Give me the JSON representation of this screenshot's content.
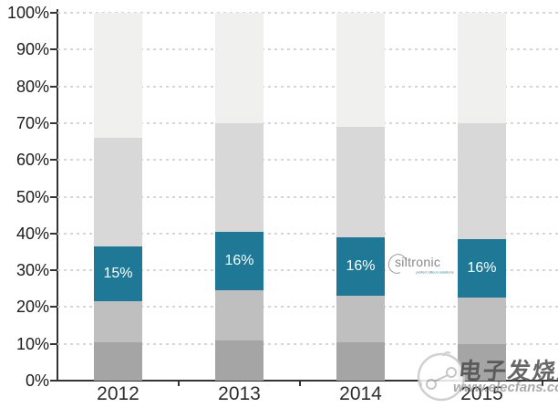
{
  "chart_data": {
    "type": "bar",
    "stacked": true,
    "title": "",
    "xlabel": "",
    "ylabel": "",
    "categories": [
      "2012",
      "2013",
      "2014",
      "2015"
    ],
    "series": [
      {
        "name": "bottom-dark-gray",
        "color": "#a5a5a5",
        "values": [
          10.5,
          11,
          10.5,
          10
        ]
      },
      {
        "name": "lower-mid-gray",
        "color": "#bfbfbf",
        "values": [
          11,
          13.5,
          12.5,
          12.5
        ]
      },
      {
        "name": "siltronic-share-teal",
        "color": "#1e7896",
        "values": [
          15,
          16,
          16,
          16
        ],
        "data_labels": [
          "15%",
          "16%",
          "16%",
          "16%"
        ],
        "label_color": "#ffffff"
      },
      {
        "name": "upper-mid-gray",
        "color": "#d8d8d8",
        "values": [
          29.5,
          29.5,
          30,
          31.5
        ]
      },
      {
        "name": "top-light-gray",
        "color": "#f0f0ef",
        "values": [
          34,
          30,
          31,
          30
        ]
      }
    ],
    "y_ticks": [
      "0%",
      "10%",
      "20%",
      "30%",
      "40%",
      "50%",
      "60%",
      "70%",
      "80%",
      "90%",
      "100%"
    ],
    "ylim": [
      0,
      100
    ],
    "grid": "horizontal-dashed",
    "legend": "none"
  },
  "logo": {
    "brand": "siltronic",
    "tagline": "perfect silicon solutions"
  },
  "watermark": {
    "title": "电子发烧友",
    "url": "www.elecfans.com"
  }
}
